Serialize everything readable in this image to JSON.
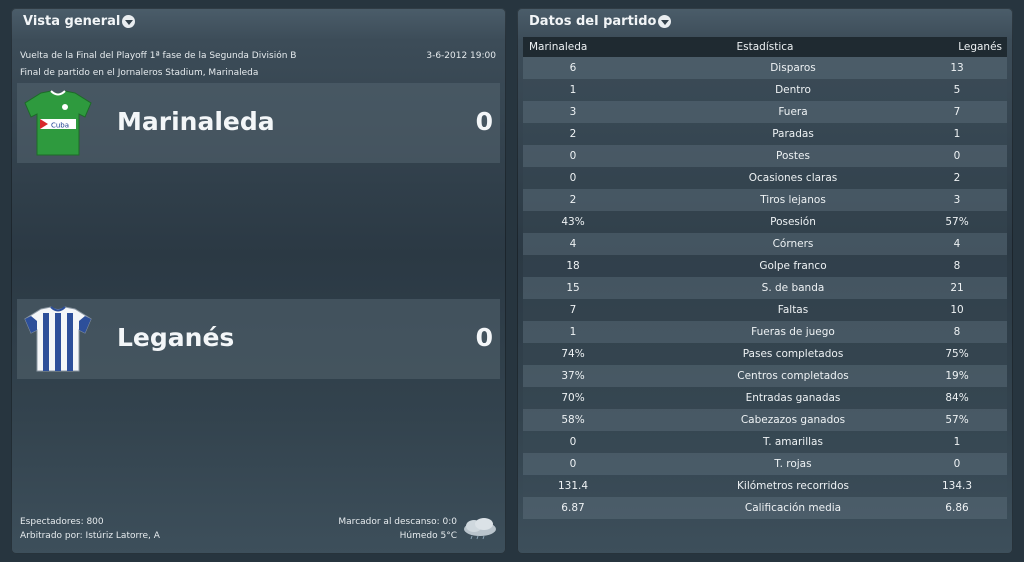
{
  "overview": {
    "title": "Vista general",
    "competition": "Vuelta de la Final del Playoff 1ª fase de la Segunda División B",
    "datetime": "3-6-2012 19:00",
    "venue": "Final de partido en el Jornaleros Stadium, Marinaleda",
    "home": {
      "name": "Marinaleda",
      "score": "0",
      "shirt_text": "Cuba"
    },
    "away": {
      "name": "Leganés",
      "score": "0"
    },
    "attendance": "Espectadores: 800",
    "referee": "Arbitrado por: Istúriz Latorre, A",
    "halftime": "Marcador al descanso: 0:0",
    "weather": "Húmedo 5°C"
  },
  "stats": {
    "title": "Datos del partido",
    "header": {
      "home": "Marinaleda",
      "label": "Estadística",
      "away": "Leganés"
    },
    "rows": [
      {
        "home": "6",
        "label": "Disparos",
        "away": "13"
      },
      {
        "home": "1",
        "label": "Dentro",
        "away": "5"
      },
      {
        "home": "3",
        "label": "Fuera",
        "away": "7"
      },
      {
        "home": "2",
        "label": "Paradas",
        "away": "1"
      },
      {
        "home": "0",
        "label": "Postes",
        "away": "0"
      },
      {
        "home": "0",
        "label": "Ocasiones claras",
        "away": "2"
      },
      {
        "home": "2",
        "label": "Tiros lejanos",
        "away": "3"
      },
      {
        "home": "43%",
        "label": "Posesión",
        "away": "57%"
      },
      {
        "home": "4",
        "label": "Córners",
        "away": "4"
      },
      {
        "home": "18",
        "label": "Golpe franco",
        "away": "8"
      },
      {
        "home": "15",
        "label": "S. de banda",
        "away": "21"
      },
      {
        "home": "7",
        "label": "Faltas",
        "away": "10"
      },
      {
        "home": "1",
        "label": "Fueras de juego",
        "away": "8"
      },
      {
        "home": "74%",
        "label": "Pases completados",
        "away": "75%"
      },
      {
        "home": "37%",
        "label": "Centros completados",
        "away": "19%"
      },
      {
        "home": "70%",
        "label": "Entradas ganadas",
        "away": "84%"
      },
      {
        "home": "58%",
        "label": "Cabezazos ganados",
        "away": "57%"
      },
      {
        "home": "0",
        "label": "T. amarillas",
        "away": "1"
      },
      {
        "home": "0",
        "label": "T. rojas",
        "away": "0"
      },
      {
        "home": "131.4",
        "label": "Kilómetros recorridos",
        "away": "134.3"
      },
      {
        "home": "6.87",
        "label": "Calificación media",
        "away": "6.86"
      }
    ]
  },
  "icons": {
    "dropdown": "chevron-down-icon",
    "home_shirt": "green-shirt-icon",
    "away_shirt": "striped-shirt-icon",
    "weather": "cloud-icon"
  },
  "colors": {
    "home_shirt": "#2e9a3e",
    "away_shirt_stripe": "#2d4f9a"
  }
}
